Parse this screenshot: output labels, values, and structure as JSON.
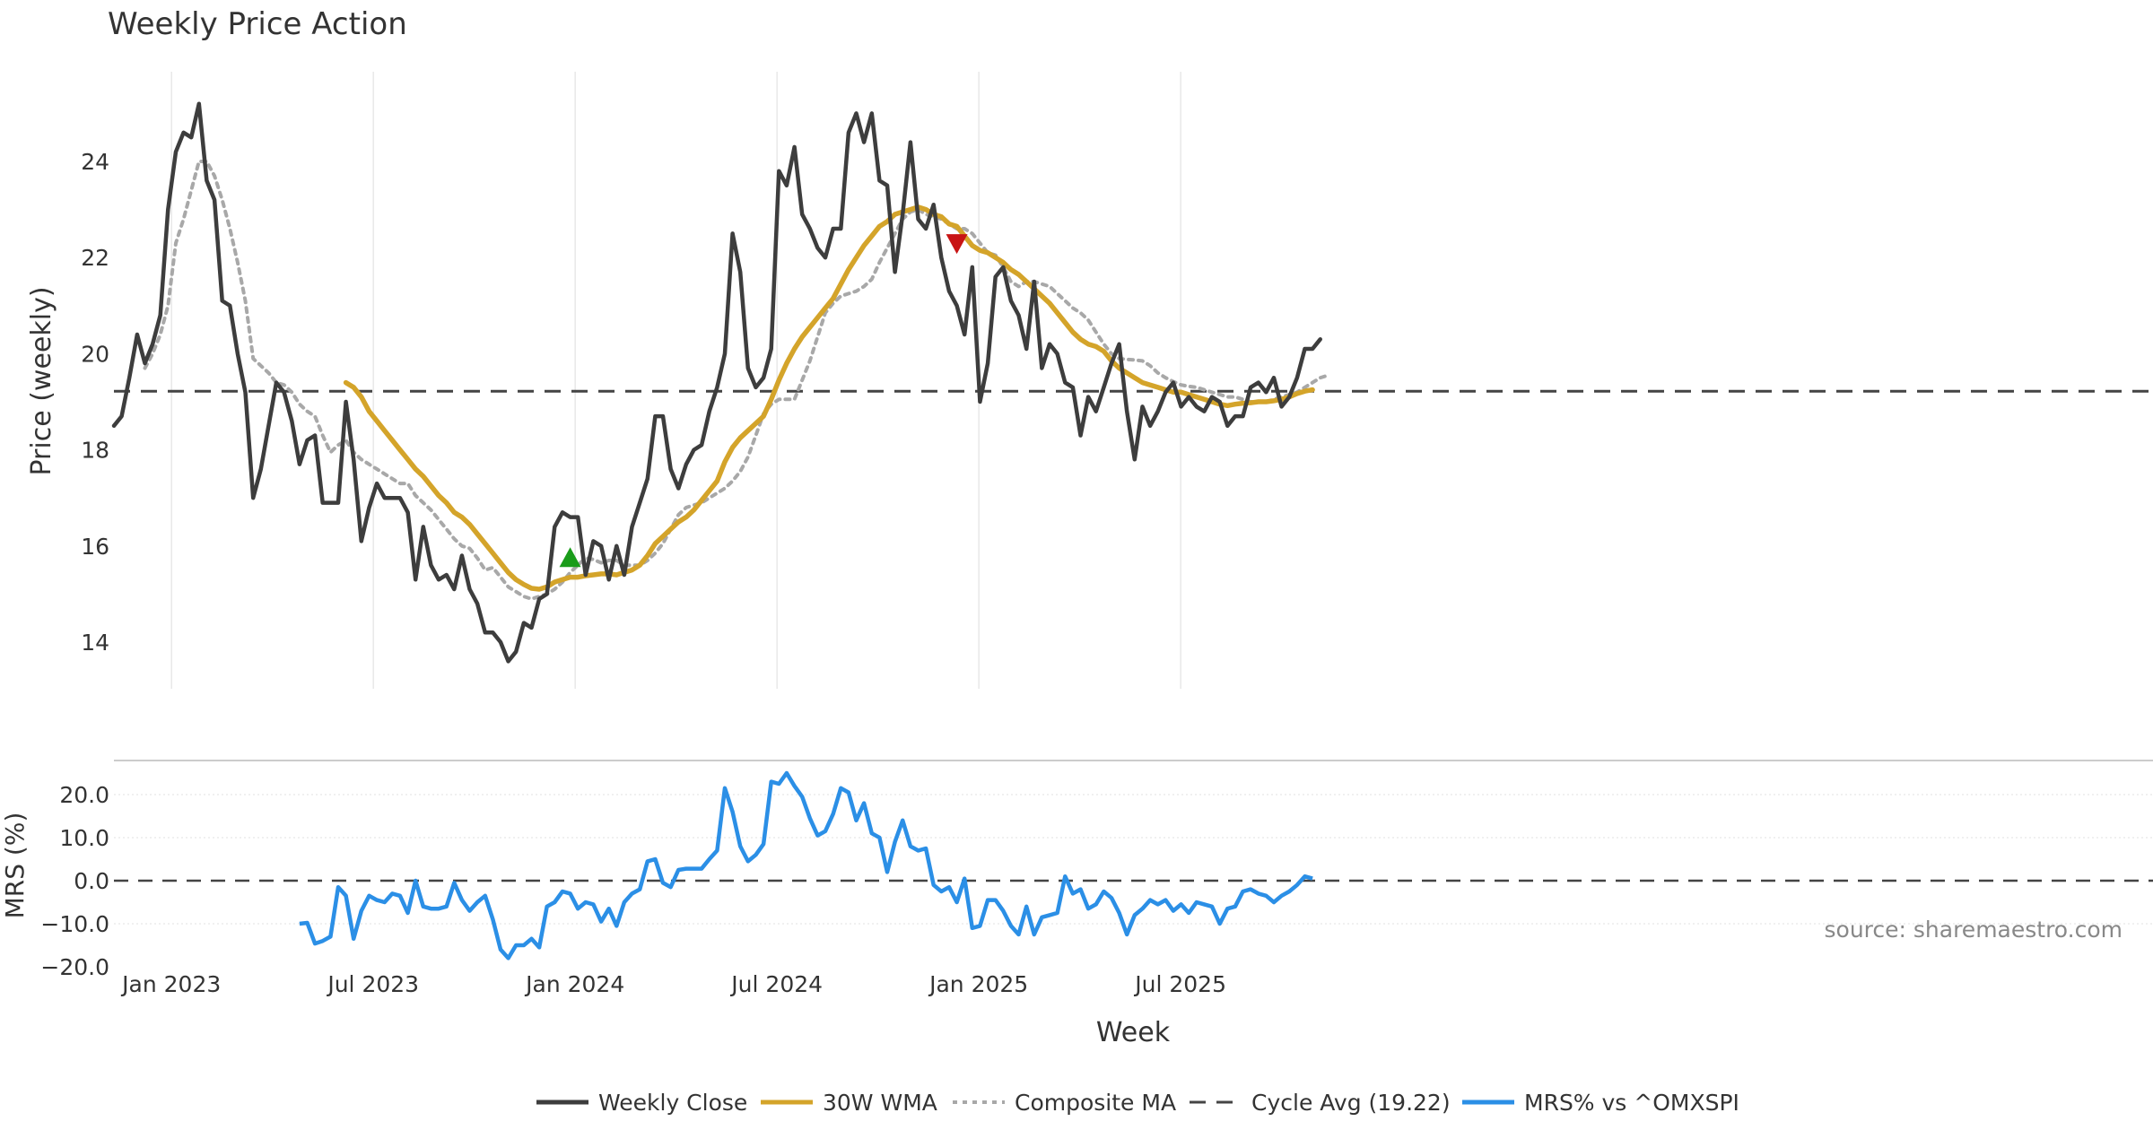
{
  "chart_data": {
    "type": "line",
    "title": "Weekly Price Action",
    "xlabel": "Week",
    "watermark": "source: sharemaestro.com",
    "x_ticks": [
      "Jan 2023",
      "Jul 2023",
      "Jan 2024",
      "Jul 2024",
      "Jan 2025",
      "Jul 2025"
    ],
    "price_panel": {
      "ylabel": "Price (weekly)",
      "ylim": [
        13.0,
        25.8
      ],
      "yticks": [
        "14",
        "16",
        "18",
        "20",
        "22",
        "24"
      ],
      "grid": "vertical",
      "cycle_avg": 19.22,
      "weekly_close": [
        18.5,
        18.7,
        19.5,
        20.4,
        19.8,
        20.2,
        20.8,
        23.0,
        24.2,
        24.6,
        24.5,
        25.2,
        23.6,
        23.2,
        21.1,
        21.0,
        20.0,
        19.2,
        17.0,
        17.6,
        18.5,
        19.4,
        19.2,
        18.6,
        17.7,
        18.2,
        18.3,
        16.9,
        16.9,
        16.9,
        19.0,
        17.8,
        16.1,
        16.8,
        17.3,
        17.0,
        17.0,
        17.0,
        16.7,
        15.3,
        16.4,
        15.6,
        15.3,
        15.4,
        15.1,
        15.8,
        15.1,
        14.8,
        14.2,
        14.2,
        14.0,
        13.6,
        13.8,
        14.4,
        14.3,
        14.9,
        15.0,
        16.4,
        16.7,
        16.6,
        16.6,
        15.4,
        16.1,
        16.0,
        15.3,
        16.0,
        15.4,
        16.4,
        16.9,
        17.4,
        18.7,
        18.7,
        17.6,
        17.2,
        17.7,
        18.0,
        18.1,
        18.8,
        19.3,
        20.0,
        22.5,
        21.7,
        19.7,
        19.3,
        19.5,
        20.1,
        23.8,
        23.5,
        24.3,
        22.9,
        22.6,
        22.2,
        22.0,
        22.6,
        22.6,
        24.6,
        25.0,
        24.4,
        25.0,
        23.6,
        23.5,
        21.7,
        22.9,
        24.4,
        22.8,
        22.6,
        23.1,
        22.0,
        21.3,
        21.0,
        20.4,
        21.8,
        19.0,
        19.8,
        21.6,
        21.8,
        21.1,
        20.8,
        20.1,
        21.5,
        19.7,
        20.2,
        20.0,
        19.4,
        19.3,
        18.3,
        19.1,
        18.8,
        19.3,
        19.8,
        20.2,
        18.8,
        17.8,
        18.9,
        18.5,
        18.8,
        19.2,
        19.4,
        18.9,
        19.1,
        18.9,
        18.8,
        19.1,
        19.0,
        18.5,
        18.7,
        18.7,
        19.3,
        19.4,
        19.2,
        19.5,
        18.9,
        19.1,
        19.5,
        20.1,
        20.1,
        20.3
      ],
      "wma_30w": {
        "start_index": 30,
        "values": [
          19.4,
          19.3,
          19.1,
          18.8,
          18.6,
          18.4,
          18.2,
          18.0,
          17.8,
          17.6,
          17.45,
          17.25,
          17.05,
          16.9,
          16.7,
          16.6,
          16.45,
          16.25,
          16.05,
          15.85,
          15.65,
          15.45,
          15.3,
          15.2,
          15.12,
          15.1,
          15.15,
          15.25,
          15.3,
          15.35,
          15.35,
          15.38,
          15.4,
          15.42,
          15.42,
          15.4,
          15.45,
          15.5,
          15.6,
          15.8,
          16.05,
          16.2,
          16.35,
          16.5,
          16.6,
          16.75,
          16.95,
          17.15,
          17.35,
          17.75,
          18.05,
          18.25,
          18.4,
          18.55,
          18.7,
          19.05,
          19.45,
          19.8,
          20.1,
          20.35,
          20.55,
          20.75,
          20.95,
          21.15,
          21.45,
          21.75,
          22.0,
          22.25,
          22.45,
          22.65,
          22.75,
          22.9,
          22.95,
          23.0,
          23.05,
          23.0,
          22.9,
          22.85,
          22.7,
          22.65,
          22.45,
          22.25,
          22.15,
          22.1,
          22.0,
          21.9,
          21.75,
          21.65,
          21.5,
          21.35,
          21.2,
          21.05,
          20.85,
          20.65,
          20.45,
          20.3,
          20.2,
          20.15,
          20.05,
          19.85,
          19.7,
          19.6,
          19.5,
          19.4,
          19.35,
          19.3,
          19.25,
          19.2,
          19.2,
          19.15,
          19.1,
          19.05,
          19.0,
          18.95,
          18.92,
          18.95,
          18.97,
          18.98,
          19.0,
          19.0,
          19.02,
          19.05,
          19.1,
          19.17,
          19.22,
          19.25
        ]
      },
      "composite_ma": {
        "start_index": 4,
        "values": [
          19.7,
          20.0,
          20.4,
          21.0,
          22.3,
          22.8,
          23.4,
          24.0,
          24.0,
          23.7,
          23.2,
          22.6,
          21.9,
          21.1,
          19.9,
          19.75,
          19.6,
          19.4,
          19.35,
          19.2,
          18.95,
          18.8,
          18.7,
          18.3,
          17.95,
          18.1,
          18.2,
          17.95,
          17.8,
          17.7,
          17.6,
          17.5,
          17.4,
          17.3,
          17.3,
          17.05,
          16.9,
          16.75,
          16.55,
          16.35,
          16.15,
          16.0,
          15.95,
          15.75,
          15.5,
          15.55,
          15.35,
          15.15,
          15.05,
          14.95,
          14.9,
          14.95,
          15.0,
          15.1,
          15.25,
          15.45,
          15.6,
          15.75,
          15.72,
          15.65,
          15.7,
          15.7,
          15.6,
          15.6,
          15.6,
          15.7,
          15.85,
          16.05,
          16.35,
          16.65,
          16.8,
          16.85,
          16.9,
          17.0,
          17.1,
          17.2,
          17.35,
          17.55,
          17.85,
          18.3,
          18.75,
          18.95,
          19.05,
          19.05,
          19.05,
          19.45,
          19.85,
          20.35,
          20.85,
          21.05,
          21.2,
          21.25,
          21.3,
          21.4,
          21.55,
          21.9,
          22.2,
          22.5,
          22.8,
          22.95,
          23.0,
          22.9,
          22.85,
          22.8,
          22.7,
          22.6,
          22.6,
          22.5,
          22.3,
          22.1,
          22.05,
          21.8,
          21.5,
          21.4,
          21.5,
          21.5,
          21.45,
          21.4,
          21.25,
          21.1,
          20.95,
          20.85,
          20.7,
          20.45,
          20.2,
          20.0,
          19.9,
          19.88,
          19.87,
          19.85,
          19.75,
          19.6,
          19.5,
          19.42,
          19.35,
          19.32,
          19.3,
          19.25,
          19.2,
          19.15,
          19.1,
          19.1,
          19.05,
          19.0,
          19.0,
          19.0,
          19.05,
          19.1,
          19.15,
          19.2,
          19.3,
          19.4,
          19.5,
          19.55
        ]
      },
      "signals": [
        {
          "type": "buy",
          "index": 59,
          "value": 15.75,
          "color": "#1a9c1a"
        },
        {
          "type": "sell",
          "index": 109,
          "value": 22.3,
          "color": "#c81414"
        }
      ]
    },
    "mrs_panel": {
      "ylabel": "MRS (%)",
      "ylim": [
        -20.0,
        26.0
      ],
      "yticks": [
        "20.0",
        "10.0",
        "0.0",
        "−10.0",
        "−20.0"
      ],
      "start_index": 24,
      "values": [
        -10.0,
        -9.8,
        -14.6,
        -14.0,
        -13.0,
        -1.5,
        -3.5,
        -13.5,
        -7.0,
        -3.5,
        -4.5,
        -5.0,
        -3.0,
        -3.5,
        -7.5,
        0.0,
        -6.0,
        -6.5,
        -6.5,
        -6.0,
        -0.5,
        -4.5,
        -7.0,
        -5.0,
        -3.5,
        -9.0,
        -16.0,
        -18.0,
        -15.0,
        -15.0,
        -13.5,
        -15.5,
        -6.0,
        -5.0,
        -2.5,
        -3.0,
        -6.5,
        -5.0,
        -5.5,
        -9.5,
        -6.5,
        -10.5,
        -5.0,
        -3.0,
        -2.0,
        4.5,
        5.0,
        -0.5,
        -1.5,
        2.5,
        2.8,
        2.8,
        2.8,
        5.0,
        7.0,
        21.5,
        16.0,
        8.0,
        4.5,
        6.0,
        8.5,
        23.0,
        22.5,
        25.0,
        22.0,
        19.5,
        14.5,
        10.5,
        11.5,
        15.5,
        21.5,
        20.5,
        14.0,
        18.0,
        11.0,
        10.0,
        2.0,
        9.0,
        14.0,
        8.0,
        7.0,
        7.5,
        -1.0,
        -2.5,
        -1.5,
        -5.0,
        0.5,
        -11.0,
        -10.5,
        -4.5,
        -4.5,
        -7.0,
        -10.5,
        -12.5,
        -6.0,
        -12.5,
        -8.5,
        -8.0,
        -7.5,
        1.0,
        -3.0,
        -2.0,
        -6.5,
        -5.5,
        -2.5,
        -4.0,
        -7.5,
        -12.5,
        -8.0,
        -6.5,
        -4.5,
        -5.5,
        -4.5,
        -7.0,
        -5.5,
        -7.5,
        -5.0,
        -5.5,
        -6.0,
        -10.0,
        -6.5,
        -6.0,
        -2.5,
        -2.0,
        -3.0,
        -3.5,
        -5.0,
        -3.5,
        -2.5,
        -1.0,
        1.0,
        0.5
      ]
    },
    "series": [
      {
        "name": "Weekly Close",
        "color": "#3d3d3d",
        "style": "solid"
      },
      {
        "name": "30W WMA",
        "color": "#d4a42a",
        "style": "solid"
      },
      {
        "name": "Composite MA",
        "color": "#a8a8a8",
        "style": "dotted"
      },
      {
        "name": "Cycle Avg (19.22)",
        "color": "#444444",
        "style": "dashed"
      },
      {
        "name": "MRS% vs ^OMXSPI",
        "color": "#2b8fe6",
        "style": "solid"
      }
    ],
    "legend_placement": "bottom-center"
  }
}
